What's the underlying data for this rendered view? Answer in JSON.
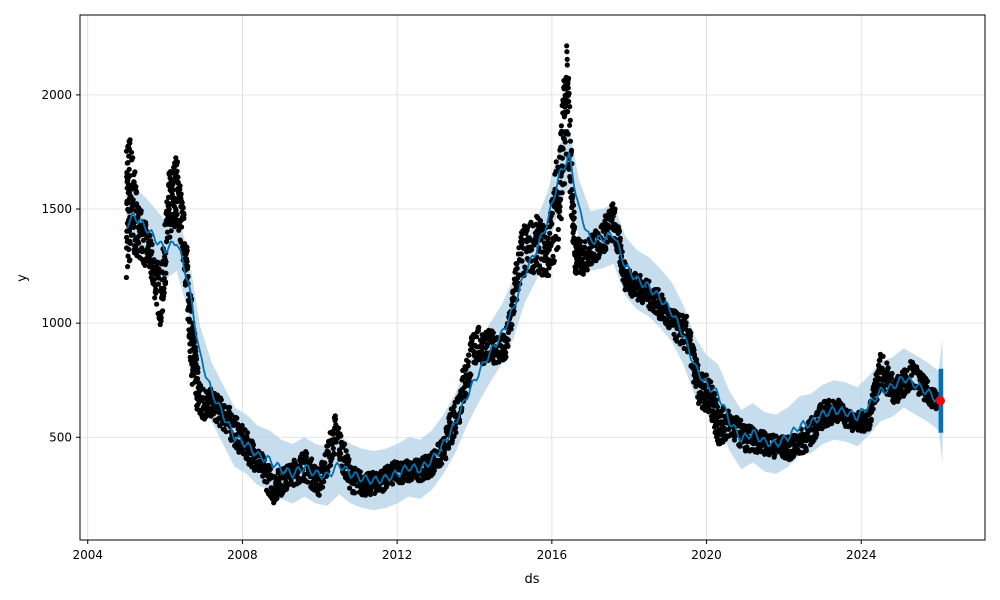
{
  "chart_data": {
    "type": "scatter",
    "xlabel": "ds",
    "ylabel": "y",
    "x_ticks": [
      2004,
      2008,
      2012,
      2016,
      2020,
      2024
    ],
    "y_ticks": [
      500,
      1000,
      1500,
      2000
    ],
    "x_tick_labels": [
      "2004",
      "2008",
      "2012",
      "2016",
      "2020",
      "2024"
    ],
    "y_tick_labels": [
      "500",
      "1000",
      "1500",
      "2000"
    ],
    "xlim": [
      2003.8,
      2027.2
    ],
    "ylim": [
      50,
      2350
    ],
    "grid": true,
    "colors": {
      "observed": "#000000",
      "forecast": "#0072B2",
      "interval": "#a6cbe3",
      "highlight": "#ff0000"
    },
    "forecast_series": {
      "x": [
        2005.0,
        2005.2,
        2005.5,
        2005.8,
        2006.0,
        2006.3,
        2006.6,
        2006.9,
        2007.2,
        2007.5,
        2007.8,
        2008.1,
        2008.4,
        2008.7,
        2009.0,
        2009.3,
        2009.6,
        2009.9,
        2010.2,
        2010.5,
        2010.8,
        2011.1,
        2011.4,
        2011.7,
        2012.0,
        2012.3,
        2012.6,
        2012.9,
        2013.2,
        2013.5,
        2013.8,
        2014.1,
        2014.4,
        2014.7,
        2015.0,
        2015.3,
        2015.6,
        2015.9,
        2016.2,
        2016.45,
        2016.7,
        2017.0,
        2017.3,
        2017.6,
        2017.9,
        2018.2,
        2018.5,
        2018.8,
        2019.1,
        2019.4,
        2019.7,
        2020.0,
        2020.3,
        2020.6,
        2020.9,
        2021.2,
        2021.5,
        2021.8,
        2022.1,
        2022.4,
        2022.7,
        2023.0,
        2023.3,
        2023.6,
        2023.9,
        2024.2,
        2024.5,
        2024.8,
        2025.1,
        2025.4,
        2025.7,
        2026.0,
        2026.1
      ],
      "y": [
        1430,
        1470,
        1420,
        1360,
        1320,
        1360,
        1180,
        860,
        700,
        600,
        500,
        470,
        420,
        400,
        360,
        340,
        370,
        340,
        330,
        380,
        340,
        320,
        310,
        320,
        340,
        370,
        360,
        400,
        470,
        560,
        680,
        780,
        870,
        950,
        1060,
        1220,
        1320,
        1450,
        1650,
        1730,
        1500,
        1360,
        1370,
        1390,
        1250,
        1190,
        1160,
        1110,
        1050,
        950,
        810,
        730,
        690,
        570,
        490,
        520,
        480,
        470,
        500,
        550,
        560,
        600,
        620,
        610,
        590,
        640,
        700,
        720,
        760,
        730,
        700,
        660,
        655
      ],
      "lower": [
        1300,
        1340,
        1290,
        1230,
        1190,
        1230,
        1050,
        730,
        570,
        470,
        370,
        340,
        290,
        270,
        230,
        210,
        240,
        210,
        200,
        250,
        210,
        190,
        180,
        190,
        210,
        240,
        230,
        270,
        340,
        430,
        550,
        650,
        740,
        820,
        930,
        1090,
        1190,
        1320,
        1520,
        1600,
        1370,
        1230,
        1240,
        1260,
        1120,
        1060,
        1030,
        980,
        920,
        820,
        680,
        600,
        560,
        440,
        360,
        390,
        350,
        340,
        370,
        420,
        430,
        470,
        490,
        480,
        460,
        510,
        570,
        590,
        630,
        600,
        570,
        530,
        390
      ],
      "upper": [
        1560,
        1600,
        1550,
        1490,
        1450,
        1490,
        1310,
        990,
        830,
        730,
        630,
        600,
        550,
        530,
        490,
        470,
        500,
        470,
        460,
        510,
        470,
        450,
        440,
        450,
        470,
        500,
        490,
        530,
        600,
        690,
        810,
        910,
        1000,
        1080,
        1190,
        1350,
        1450,
        1580,
        1780,
        1860,
        1630,
        1490,
        1500,
        1520,
        1380,
        1320,
        1290,
        1240,
        1180,
        1080,
        940,
        860,
        820,
        700,
        620,
        650,
        610,
        600,
        630,
        680,
        690,
        730,
        750,
        740,
        720,
        770,
        830,
        850,
        890,
        860,
        830,
        790,
        930
      ]
    },
    "observed_series": {
      "anchors_x": [
        2005.0,
        2005.1,
        2005.3,
        2005.6,
        2005.9,
        2006.1,
        2006.3,
        2006.5,
        2006.7,
        2006.9,
        2007.2,
        2007.6,
        2008.0,
        2008.4,
        2008.8,
        2009.2,
        2009.6,
        2010.0,
        2010.4,
        2010.8,
        2011.2,
        2011.6,
        2012.0,
        2012.4,
        2012.8,
        2013.2,
        2013.6,
        2014.0,
        2014.4,
        2014.8,
        2015.2,
        2015.6,
        2015.9,
        2016.2,
        2016.4,
        2016.6,
        2016.8,
        2017.2,
        2017.6,
        2017.9,
        2018.3,
        2018.7,
        2019.1,
        2019.5,
        2019.8,
        2020.1,
        2020.3,
        2020.6,
        2021.0,
        2021.4,
        2021.8,
        2022.2,
        2022.6,
        2023.0,
        2023.4,
        2023.8,
        2024.2,
        2024.5,
        2024.9,
        2025.3,
        2025.7,
        2026.0
      ],
      "anchors_y": [
        1500,
        1550,
        1420,
        1300,
        1100,
        1500,
        1600,
        1350,
        900,
        650,
        650,
        580,
        480,
        400,
        280,
        330,
        380,
        300,
        520,
        320,
        290,
        310,
        350,
        350,
        370,
        440,
        650,
        900,
        900,
        880,
        1300,
        1350,
        1300,
        1600,
        2000,
        1300,
        1280,
        1350,
        1450,
        1200,
        1150,
        1100,
        1000,
        950,
        720,
        680,
        550,
        560,
        500,
        480,
        460,
        450,
        500,
        600,
        620,
        560,
        580,
        800,
        700,
        780,
        700,
        650
      ],
      "spread": [
        300,
        300,
        120,
        90,
        130,
        160,
        150,
        120,
        180,
        90,
        60,
        70,
        70,
        60,
        70,
        50,
        70,
        60,
        90,
        60,
        50,
        50,
        50,
        50,
        50,
        60,
        100,
        90,
        70,
        70,
        120,
        120,
        120,
        250,
        250,
        90,
        70,
        70,
        90,
        60,
        60,
        60,
        60,
        80,
        80,
        80,
        90,
        60,
        60,
        50,
        50,
        50,
        60,
        60,
        50,
        40,
        50,
        80,
        60,
        60,
        50,
        40
      ]
    },
    "highlight_point": {
      "x": 2026.05,
      "y": 660
    }
  }
}
